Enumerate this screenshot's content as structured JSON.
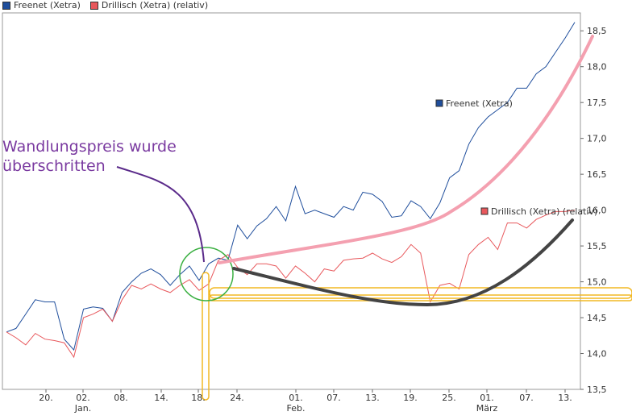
{
  "legend": {
    "series1": "Freenet (Xetra)",
    "series2": "Drillisch (Xetra) (relativ)"
  },
  "annotation": {
    "line1": "Wandlungspreis wurde",
    "line2": "überschritten"
  },
  "colors": {
    "freenet": "#1f4e9c",
    "drillisch": "#e8585c",
    "trend_up": "#f4a0b0",
    "trend_down": "#444444",
    "highlight": "#f2b824",
    "circle": "#3cb043",
    "annotation_text": "#7a3aa0"
  },
  "chart_data": {
    "type": "line",
    "ylim": [
      13.5,
      18.75
    ],
    "y_ticks": [
      "13,5",
      "14,0",
      "14,5",
      "15,0",
      "15,5",
      "16,0",
      "16,5",
      "17,0",
      "17,5",
      "18,0",
      "18,5"
    ],
    "x_ticks": [
      {
        "label": "20.",
        "sub": ""
      },
      {
        "label": "02.",
        "sub": "Jan."
      },
      {
        "label": "08.",
        "sub": ""
      },
      {
        "label": "14.",
        "sub": ""
      },
      {
        "label": "18.",
        "sub": ""
      },
      {
        "label": "24.",
        "sub": ""
      },
      {
        "label": "01.",
        "sub": "Feb."
      },
      {
        "label": "07.",
        "sub": ""
      },
      {
        "label": "13.",
        "sub": ""
      },
      {
        "label": "19.",
        "sub": ""
      },
      {
        "label": "25.",
        "sub": ""
      },
      {
        "label": "01.",
        "sub": "März"
      },
      {
        "label": "07.",
        "sub": ""
      },
      {
        "label": "13.",
        "sub": ""
      }
    ],
    "series": [
      {
        "name": "Freenet (Xetra)",
        "values": [
          14.3,
          14.35,
          14.55,
          14.75,
          14.72,
          14.72,
          14.2,
          14.05,
          14.62,
          14.65,
          14.63,
          14.45,
          14.85,
          15.0,
          15.12,
          15.18,
          15.1,
          14.95,
          15.1,
          15.22,
          15.02,
          15.25,
          15.33,
          15.3,
          15.79,
          15.6,
          15.78,
          15.88,
          16.05,
          15.85,
          16.33,
          15.95,
          16.0,
          15.95,
          15.9,
          16.05,
          16.0,
          16.25,
          16.22,
          16.12,
          15.9,
          15.92,
          16.13,
          16.05,
          15.88,
          16.1,
          16.45,
          16.55,
          16.92,
          17.15,
          17.3,
          17.4,
          17.5,
          17.7,
          17.7,
          17.9,
          18.0,
          18.2,
          18.4,
          18.62
        ]
      },
      {
        "name": "Drillisch (Xetra) (relativ)",
        "values": [
          14.3,
          14.22,
          14.12,
          14.28,
          14.2,
          14.18,
          14.15,
          13.95,
          14.5,
          14.55,
          14.62,
          14.45,
          14.75,
          14.95,
          14.9,
          14.97,
          14.9,
          14.85,
          14.95,
          15.03,
          14.88,
          14.97,
          15.3,
          15.38,
          15.2,
          15.1,
          15.25,
          15.25,
          15.22,
          15.05,
          15.22,
          15.12,
          15.0,
          15.18,
          15.15,
          15.3,
          15.32,
          15.33,
          15.4,
          15.32,
          15.27,
          15.35,
          15.52,
          15.4,
          14.72,
          14.95,
          14.98,
          14.9,
          15.38,
          15.52,
          15.62,
          15.45,
          15.82,
          15.82,
          15.75,
          15.87,
          15.93,
          15.98,
          15.98,
          16.0
        ]
      }
    ],
    "series_labels": [
      {
        "name": "Freenet (Xetra)",
        "at_index": 49
      },
      {
        "name": "Drillisch (Xetra) (relativ)",
        "at_index": 53
      }
    ]
  }
}
